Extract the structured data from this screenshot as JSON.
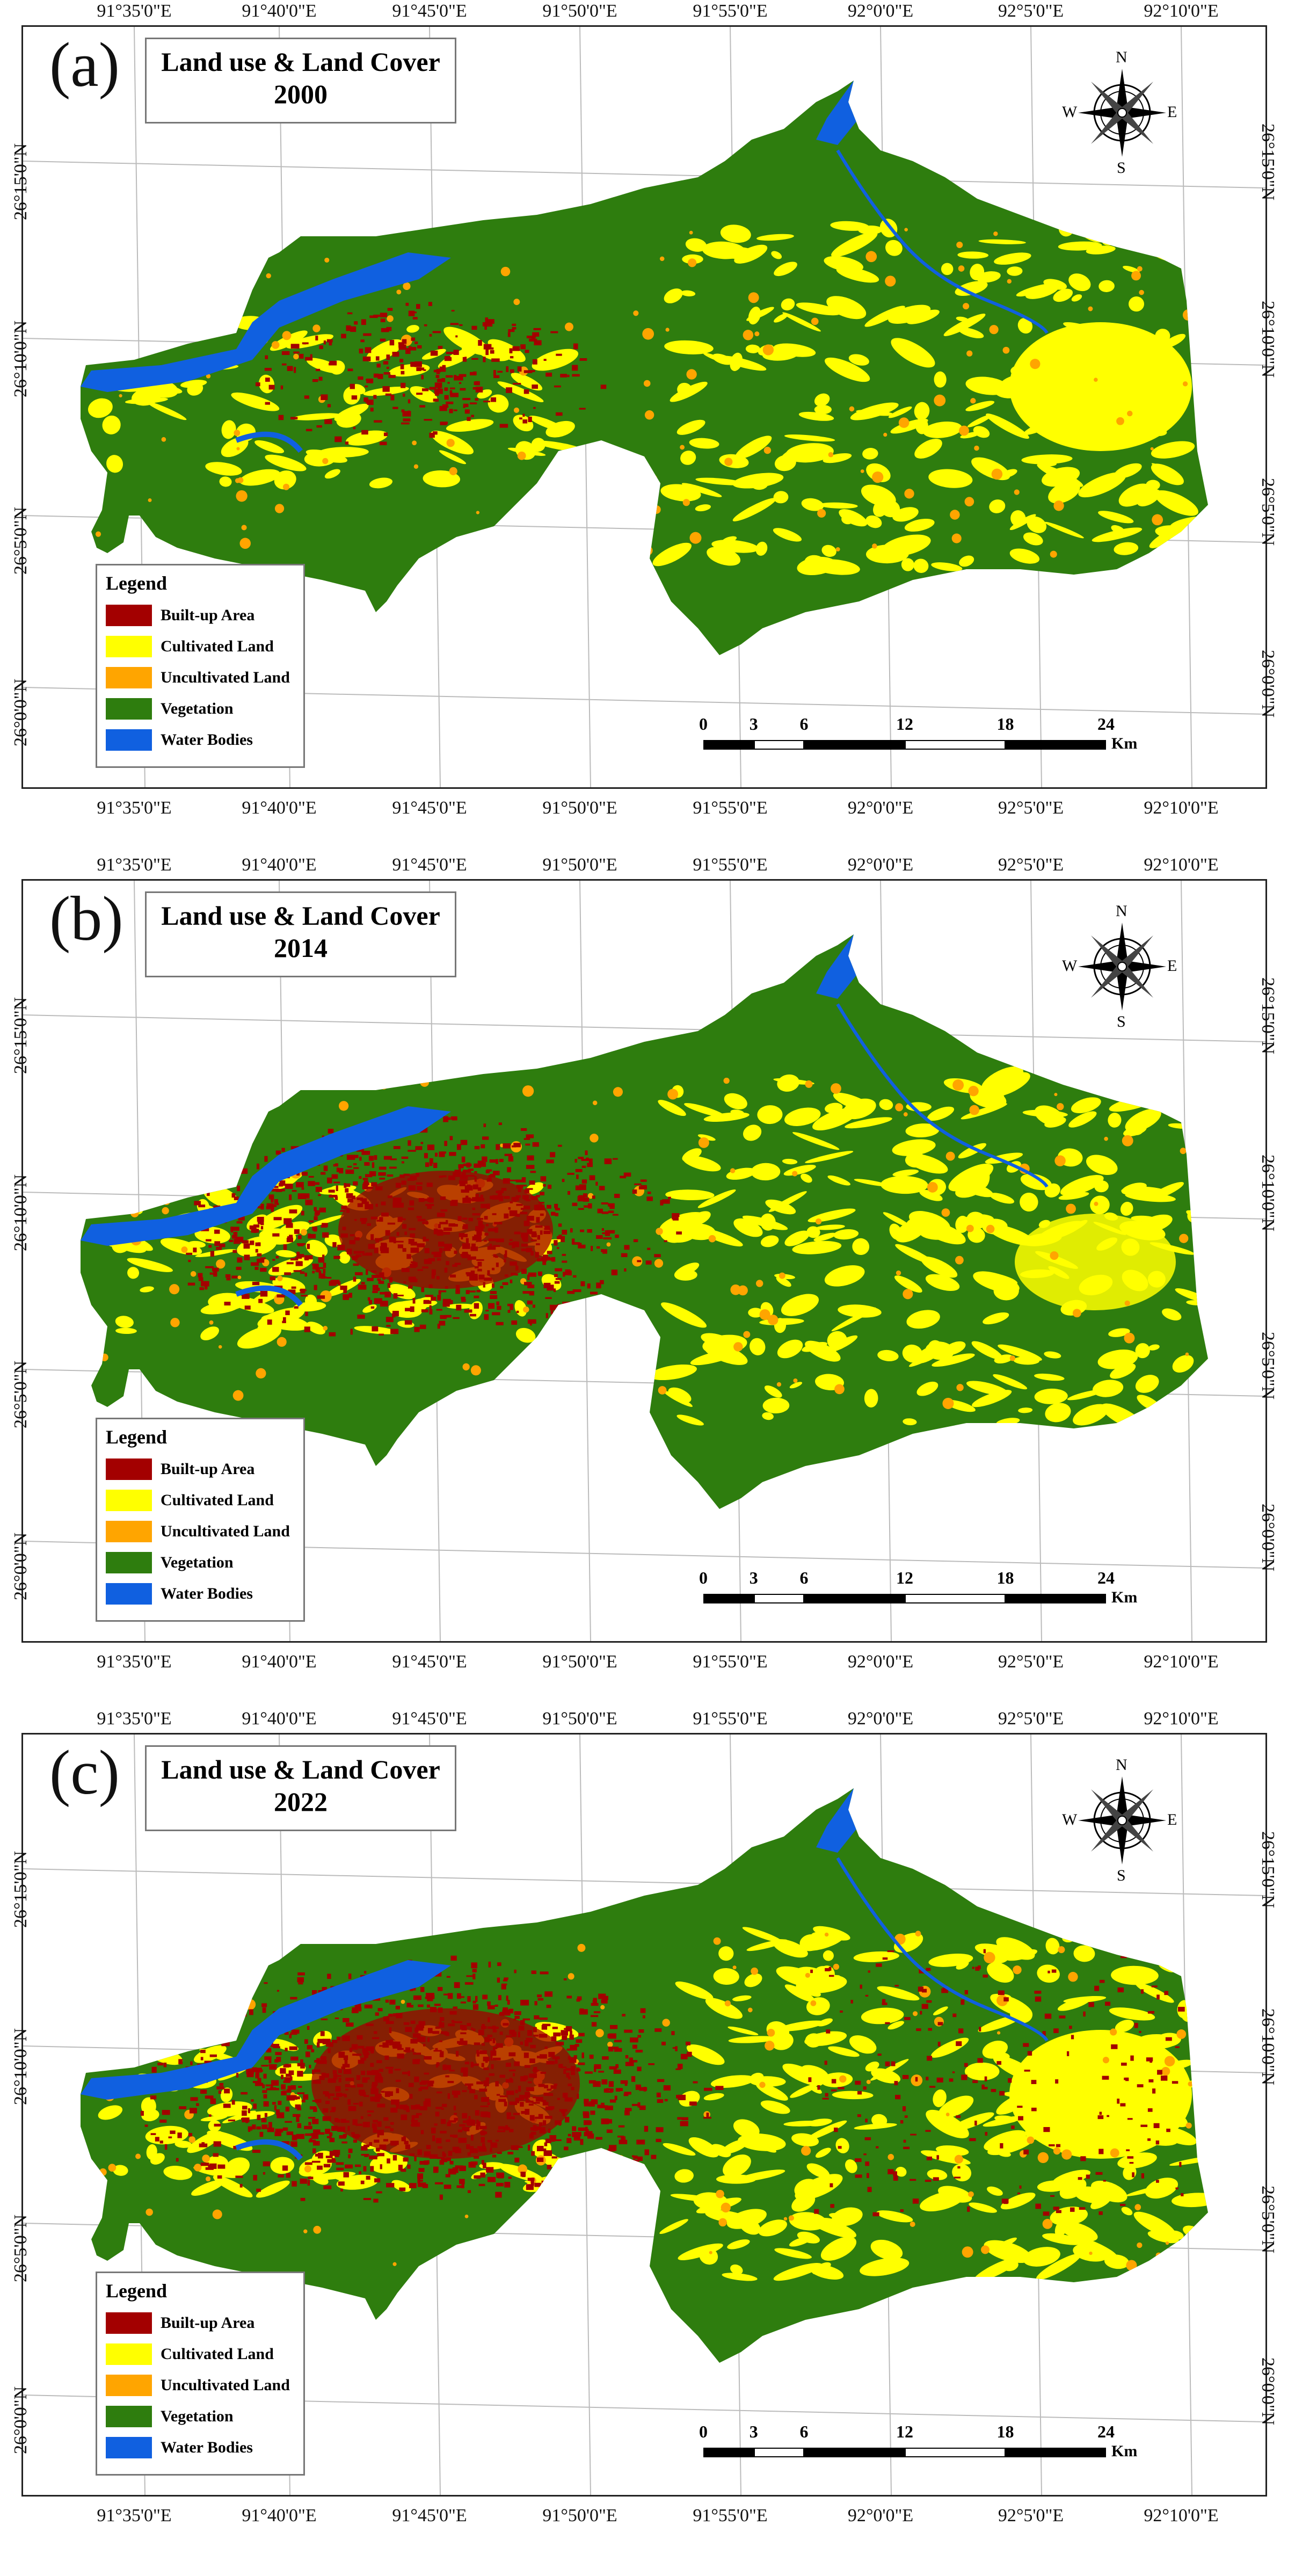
{
  "panels": [
    {
      "letter": "(a)",
      "title_line1": "Land use & Land Cover",
      "title_line2": "2000"
    },
    {
      "letter": "(b)",
      "title_line1": "Land use & Land Cover",
      "title_line2": "2014"
    },
    {
      "letter": "(c)",
      "title_line1": "Land use & Land Cover",
      "title_line2": "2022"
    }
  ],
  "longitude_labels": [
    "91°35'0\"E",
    "91°40'0\"E",
    "91°45'0\"E",
    "91°50'0\"E",
    "91°55'0\"E",
    "92°0'0\"E",
    "92°5'0\"E",
    "92°10'0\"E"
  ],
  "latitude_labels": [
    "26°15'0\"N",
    "26°10'0\"N",
    "26°5'0\"N",
    "26°0'0\"N"
  ],
  "legend": {
    "title": "Legend",
    "items": [
      {
        "label": "Built-up Area",
        "color": "#a30000"
      },
      {
        "label": "Cultivated Land",
        "color": "#ffff00"
      },
      {
        "label": "Uncultivated Land",
        "color": "#ffa500"
      },
      {
        "label": "Vegetation",
        "color": "#2e7d0e"
      },
      {
        "label": "Water Bodies",
        "color": "#1060e0"
      }
    ]
  },
  "scale_bar": {
    "ticks": [
      "0",
      "3",
      "6",
      "12",
      "18",
      "24"
    ],
    "unit": "Km"
  },
  "compass": {
    "n": "N",
    "s": "S",
    "e": "E",
    "w": "W",
    "icon": "north-arrow-compass-rose"
  }
}
